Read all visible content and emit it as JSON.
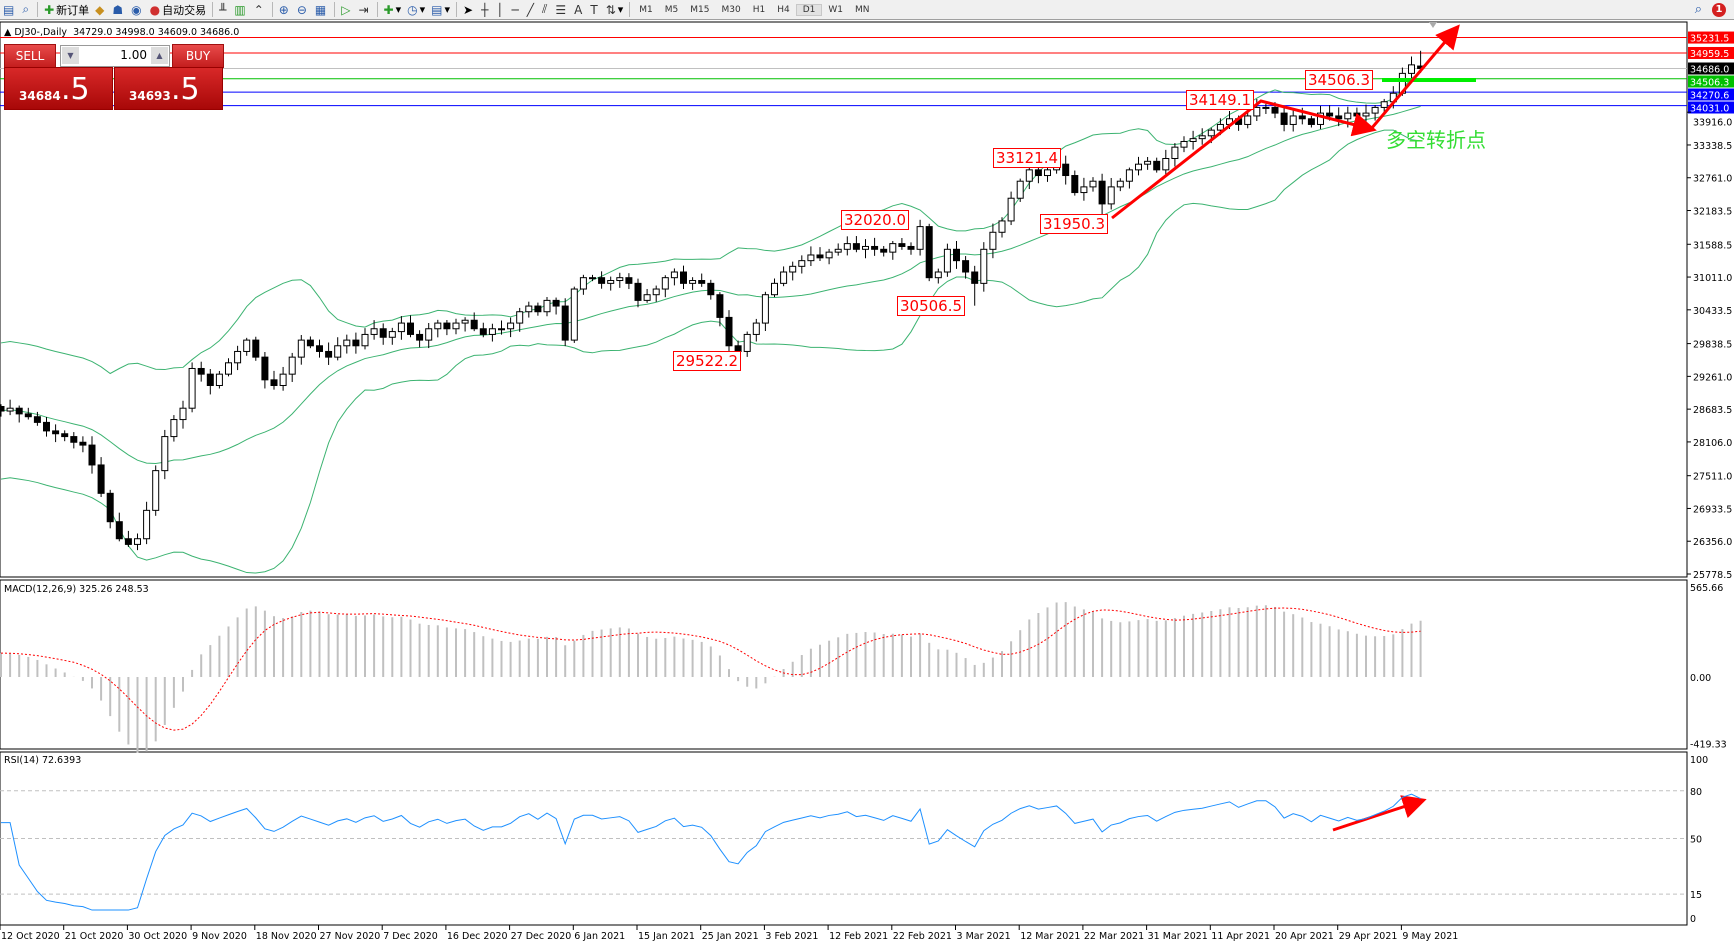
{
  "toolbar": {
    "new_order": "新订单",
    "auto_trading": "自动交易",
    "timeframes": [
      "M1",
      "M5",
      "M15",
      "M30",
      "H1",
      "H4",
      "D1",
      "W1",
      "MN"
    ],
    "active_timeframe": "D1",
    "notification_count": "1"
  },
  "chart_header": {
    "symbol": "DJ30-,Daily",
    "ohlc": "34729.0 34998.0 34609.0 34686.0"
  },
  "trade_panel": {
    "sell_label": "SELL",
    "buy_label": "BUY",
    "lot": "1.00",
    "sell_price_main": "34684",
    "sell_price_frac": ".5",
    "buy_price_main": "34693",
    "buy_price_frac": ".5"
  },
  "note": "多空转折点",
  "colors": {
    "bull": "#ffffff",
    "bear": "#000000",
    "bands": "#3cb371",
    "macd_hist": "#c0c0c0",
    "macd_signal": "#ff0000",
    "rsi": "#1e90ff",
    "annotation": "#ff0000",
    "note": "#33dd33"
  },
  "chart_data": [
    {
      "type": "candlestick",
      "title": "DJ30-,Daily",
      "x_tick_labels": [
        "12 Oct 2020",
        "21 Oct 2020",
        "30 Oct 2020",
        "9 Nov 2020",
        "18 Nov 2020",
        "27 Nov 2020",
        "7 Dec 2020",
        "16 Dec 2020",
        "27 Dec 2020",
        "6 Jan 2021",
        "15 Jan 2021",
        "25 Jan 2021",
        "3 Feb 2021",
        "12 Feb 2021",
        "22 Feb 2021",
        "3 Mar 2021",
        "12 Mar 2021",
        "22 Mar 2021",
        "31 Mar 2021",
        "11 Apr 2021",
        "20 Apr 2021",
        "29 Apr 2021",
        "9 May 2021"
      ],
      "x_tick_every_bars": 7,
      "y_tick_labels": [
        "33916.0",
        "33338.5",
        "32761.0",
        "32183.5",
        "31588.5",
        "31011.0",
        "30433.5",
        "29838.5",
        "29261.0",
        "28683.5",
        "28106.0",
        "27511.0",
        "26933.5",
        "26356.0",
        "25778.5"
      ],
      "ylim": [
        25778.5,
        35300
      ],
      "closes": [
        28650,
        28700,
        28600,
        28550,
        28450,
        28300,
        28250,
        28200,
        28100,
        28050,
        27700,
        27200,
        26700,
        26400,
        26300,
        26400,
        26900,
        27600,
        28200,
        28500,
        28700,
        29400,
        29300,
        29100,
        29300,
        29500,
        29700,
        29900,
        29600,
        29200,
        29100,
        29300,
        29600,
        29900,
        29800,
        29700,
        29600,
        29800,
        29900,
        29800,
        30000,
        30100,
        29950,
        30050,
        30200,
        30000,
        29900,
        30100,
        30200,
        30100,
        30200,
        30250,
        30100,
        30000,
        30100,
        30100,
        30200,
        30400,
        30500,
        30400,
        30600,
        30500,
        29900,
        30800,
        31000,
        31000,
        30900,
        30950,
        31000,
        30900,
        30600,
        30700,
        30800,
        31000,
        31100,
        30900,
        30950,
        30900,
        30700,
        30300,
        29800,
        29700,
        30000,
        30200,
        30700,
        30900,
        31100,
        31200,
        31300,
        31400,
        31350,
        31450,
        31500,
        31600,
        31500,
        31550,
        31500,
        31450,
        31600,
        31550,
        31500,
        31900,
        31000,
        31100,
        31500,
        31300,
        31100,
        30900,
        31500,
        31800,
        32000,
        32400,
        32700,
        32900,
        32800,
        32900,
        33000,
        32800,
        32500,
        32600,
        32700,
        32300,
        32600,
        32700,
        32900,
        33000,
        33050,
        32900,
        33100,
        33300,
        33400,
        33450,
        33500,
        33600,
        33700,
        33800,
        33700,
        33850,
        34000,
        34000,
        33900,
        33700,
        33850,
        33800,
        33700,
        33900,
        33850,
        33800,
        33900,
        33850,
        33900,
        34000,
        34100,
        34250,
        34600,
        34750,
        34686
      ],
      "last_bar": {
        "open": 34729.0,
        "high": 34998.0,
        "low": 34609.0,
        "close": 34686.0
      },
      "indicator": "Bollinger Bands (20,2)",
      "horizontal_lines": [
        {
          "value": "35231.5",
          "color": "#ff0000"
        },
        {
          "value": "34959.5",
          "color": "#ff0000"
        },
        {
          "value": "34686.0",
          "color": "#000000"
        },
        {
          "value": "34506.3",
          "color": "#00c000"
        },
        {
          "value": "34270.6",
          "color": "#0000ff"
        },
        {
          "value": "34031.0",
          "color": "#0000ff"
        }
      ],
      "annotations": [
        {
          "label": "34149.1",
          "bar": 138,
          "kind": "high"
        },
        {
          "label": "34506.3",
          "bar": 154,
          "kind": "level"
        },
        {
          "label": "33121.4",
          "bar": 116,
          "kind": "high"
        },
        {
          "label": "32020.0",
          "bar": 101,
          "kind": "high"
        },
        {
          "label": "31950.3",
          "bar": 121,
          "kind": "low"
        },
        {
          "label": "30506.5",
          "bar": 107,
          "kind": "low"
        },
        {
          "label": "29522.2",
          "bar": 80,
          "kind": "low"
        }
      ]
    },
    {
      "type": "bar+line",
      "title": "MACD(12,26,9) 325.26 248.53",
      "y_tick_labels": [
        "565.66",
        "0.00",
        "-419.33"
      ],
      "ylim": [
        -419.33,
        565.66
      ]
    },
    {
      "type": "line",
      "title": "RSI(14) 72.6393",
      "y_tick_labels": [
        "100",
        "80",
        "50",
        "15",
        "0"
      ],
      "levels": [
        80,
        50,
        15
      ],
      "ylim": [
        0,
        100
      ]
    }
  ]
}
